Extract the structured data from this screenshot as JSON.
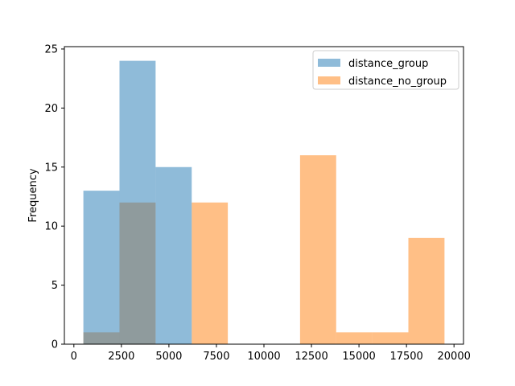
{
  "chart_data": {
    "type": "histogram",
    "title": "",
    "xlabel": "",
    "ylabel": "Frequency",
    "xlim": [
      -500,
      20500
    ],
    "ylim": [
      0,
      25.2
    ],
    "xticks": [
      0,
      2500,
      5000,
      7500,
      10000,
      12500,
      15000,
      17500,
      20000
    ],
    "yticks": [
      0,
      5,
      10,
      15,
      20,
      25
    ],
    "legend_position": "top-right",
    "series": [
      {
        "name": "distance_no_group",
        "color": "#ff7f0e",
        "opacity": 0.5,
        "bins": [
          {
            "x0": 500,
            "x1": 2400,
            "count": 1
          },
          {
            "x0": 2400,
            "x1": 4300,
            "count": 12
          },
          {
            "x0": 4300,
            "x1": 6200,
            "count": 0
          },
          {
            "x0": 6200,
            "x1": 8100,
            "count": 12
          },
          {
            "x0": 8100,
            "x1": 10000,
            "count": 0
          },
          {
            "x0": 10000,
            "x1": 11900,
            "count": 0
          },
          {
            "x0": 11900,
            "x1": 13800,
            "count": 16
          },
          {
            "x0": 13800,
            "x1": 15700,
            "count": 1
          },
          {
            "x0": 15700,
            "x1": 17600,
            "count": 1
          },
          {
            "x0": 17600,
            "x1": 19500,
            "count": 9
          }
        ]
      },
      {
        "name": "distance_group",
        "color": "#1f77b4",
        "opacity": 0.5,
        "bins": [
          {
            "x0": 500,
            "x1": 2400,
            "count": 13
          },
          {
            "x0": 2400,
            "x1": 4300,
            "count": 24
          },
          {
            "x0": 4300,
            "x1": 6200,
            "count": 15
          }
        ]
      }
    ],
    "legend": [
      "distance_group",
      "distance_no_group"
    ]
  }
}
